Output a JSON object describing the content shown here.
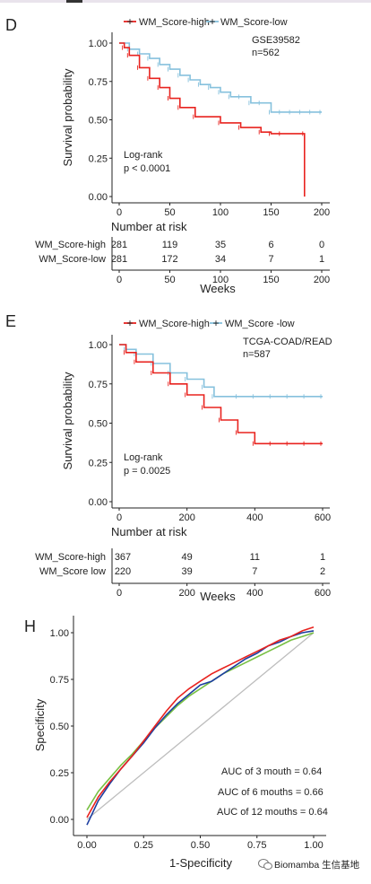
{
  "colors": {
    "high": "#e8231f",
    "low": "#86c1dd",
    "auc3": "#1e3fa0",
    "auc6": "#e8231f",
    "auc12": "#78c043",
    "ref": "#bdbdbd",
    "watermark": "#555555"
  },
  "charts": {
    "D": {
      "panel": "D",
      "legend": {
        "high": "WM_Score-high",
        "low": "WM_Score-low"
      },
      "cohort": "GSE39582",
      "n": "n=562",
      "ylabel": "Survival probability",
      "logrank_label": "Log-rank",
      "pvalue": "p < 0.0001",
      "risk_title": "Number at risk",
      "risk_labels": [
        "WM_Score-high",
        "WM_Score-low"
      ],
      "risk_high": [
        "281",
        "119",
        "35",
        "6",
        "0"
      ],
      "risk_low": [
        "281",
        "172",
        "34",
        "7",
        "1"
      ],
      "xlabel": "Weeks",
      "xticks": [
        "0",
        "50",
        "100",
        "150",
        "200"
      ],
      "yticks": [
        "0.00",
        "0.25",
        "0.50",
        "0.75",
        "1.00"
      ]
    },
    "E": {
      "panel": "E",
      "legend": {
        "high": "WM_Score-high",
        "low": "WM_Score -low"
      },
      "cohort": "TCGA-COAD/READ",
      "n": "n=587",
      "ylabel": "Survival probability",
      "logrank_label": "Log-rank",
      "pvalue": "p = 0.0025",
      "risk_title": "Number at risk",
      "risk_labels": [
        "WM_Score-high",
        "WM_Score low"
      ],
      "risk_high": [
        "367",
        "49",
        "11",
        "1"
      ],
      "risk_low": [
        "220",
        "39",
        "7",
        "2"
      ],
      "xlabel": "Weeks",
      "xticks": [
        "0",
        "200",
        "400",
        "600"
      ],
      "yticks": [
        "0.00",
        "0.25",
        "0.50",
        "0.75",
        "1.00"
      ]
    },
    "H": {
      "panel": "H",
      "ylabel": "Specificity",
      "xlabel": "1-Specificity",
      "xticks": [
        "0.00",
        "0.25",
        "0.50",
        "0.75",
        "1.00"
      ],
      "yticks": [
        "0.00",
        "0.25",
        "0.50",
        "0.75",
        "1.00"
      ],
      "auc": [
        {
          "label": "AUC of 3 mouth =  0.64",
          "key": "auc3"
        },
        {
          "label": "AUC of  6 mouths =  0.66",
          "key": "auc6"
        },
        {
          "label": "AUC of 12 mouths =  0.64",
          "key": "auc12"
        }
      ]
    }
  },
  "watermark": "Biomamba 生信基地",
  "chart_data": [
    {
      "type": "line",
      "title": "GSE39582 n=562",
      "xlabel": "Weeks",
      "ylabel": "Survival probability",
      "xlim": [
        0,
        210
      ],
      "ylim": [
        0,
        1.05
      ],
      "series": [
        {
          "name": "WM_Score-high",
          "x": [
            0,
            5,
            10,
            20,
            30,
            40,
            50,
            60,
            75,
            100,
            120,
            140,
            150,
            160,
            183,
            183
          ],
          "y": [
            1.0,
            0.97,
            0.92,
            0.84,
            0.77,
            0.71,
            0.64,
            0.58,
            0.52,
            0.48,
            0.45,
            0.42,
            0.41,
            0.41,
            0.41,
            0.0
          ]
        },
        {
          "name": "WM_Score-low",
          "x": [
            0,
            10,
            20,
            30,
            40,
            50,
            60,
            70,
            80,
            90,
            100,
            110,
            120,
            130,
            140,
            150,
            160,
            170,
            180,
            190,
            200
          ],
          "y": [
            1.0,
            0.96,
            0.93,
            0.9,
            0.86,
            0.83,
            0.79,
            0.76,
            0.73,
            0.71,
            0.68,
            0.65,
            0.65,
            0.61,
            0.61,
            0.55,
            0.55,
            0.55,
            0.55,
            0.55,
            0.55
          ]
        }
      ]
    },
    {
      "type": "line",
      "title": "TCGA-COAD/READ n=587",
      "xlabel": "Weeks",
      "ylabel": "Survival probability",
      "xlim": [
        0,
        630
      ],
      "ylim": [
        0,
        1.05
      ],
      "series": [
        {
          "name": "WM_Score-high",
          "x": [
            0,
            20,
            50,
            100,
            150,
            200,
            250,
            300,
            350,
            400,
            450,
            500,
            550,
            600
          ],
          "y": [
            1.0,
            0.95,
            0.89,
            0.82,
            0.75,
            0.68,
            0.6,
            0.52,
            0.44,
            0.37,
            0.37,
            0.37,
            0.37,
            0.37
          ]
        },
        {
          "name": "WM_Score-low",
          "x": [
            0,
            20,
            50,
            100,
            150,
            200,
            250,
            280,
            350,
            400,
            450,
            500,
            550,
            600
          ],
          "y": [
            1.0,
            0.97,
            0.94,
            0.88,
            0.82,
            0.78,
            0.73,
            0.67,
            0.67,
            0.67,
            0.67,
            0.67,
            0.67,
            0.67
          ]
        }
      ]
    },
    {
      "type": "line",
      "title": "",
      "xlabel": "1-Specificity",
      "ylabel": "Specificity",
      "xlim": [
        0,
        1.0
      ],
      "ylim": [
        0,
        1.05
      ],
      "series": [
        {
          "name": "AUC of 3 mouth =  0.64",
          "x": [
            0.0,
            0.05,
            0.1,
            0.15,
            0.2,
            0.25,
            0.3,
            0.35,
            0.4,
            0.45,
            0.5,
            0.55,
            0.6,
            0.65,
            0.7,
            0.75,
            0.8,
            0.85,
            0.9,
            0.95,
            1.0
          ],
          "y": [
            -0.03,
            0.1,
            0.19,
            0.27,
            0.34,
            0.41,
            0.49,
            0.56,
            0.62,
            0.67,
            0.72,
            0.74,
            0.78,
            0.82,
            0.86,
            0.89,
            0.93,
            0.95,
            0.98,
            1.0,
            1.01
          ]
        },
        {
          "name": "AUC of  6 mouths =  0.66",
          "x": [
            0.0,
            0.05,
            0.1,
            0.15,
            0.2,
            0.25,
            0.3,
            0.35,
            0.4,
            0.45,
            0.5,
            0.55,
            0.6,
            0.65,
            0.7,
            0.75,
            0.8,
            0.85,
            0.9,
            0.95,
            1.0
          ],
          "y": [
            0.01,
            0.12,
            0.2,
            0.27,
            0.34,
            0.42,
            0.5,
            0.58,
            0.65,
            0.7,
            0.74,
            0.78,
            0.81,
            0.84,
            0.87,
            0.9,
            0.93,
            0.96,
            0.98,
            1.01,
            1.03
          ]
        },
        {
          "name": "AUC of 12 mouths =  0.64",
          "x": [
            0.0,
            0.05,
            0.1,
            0.15,
            0.2,
            0.25,
            0.3,
            0.35,
            0.4,
            0.45,
            0.5,
            0.55,
            0.6,
            0.65,
            0.7,
            0.75,
            0.8,
            0.85,
            0.9,
            0.95,
            1.0
          ],
          "y": [
            0.05,
            0.15,
            0.22,
            0.29,
            0.35,
            0.42,
            0.49,
            0.55,
            0.61,
            0.66,
            0.7,
            0.74,
            0.78,
            0.81,
            0.84,
            0.87,
            0.9,
            0.93,
            0.96,
            0.98,
            1.0
          ]
        },
        {
          "name": "",
          "x": [
            0.0,
            1.0
          ],
          "y": [
            0.0,
            1.0
          ]
        }
      ]
    }
  ]
}
